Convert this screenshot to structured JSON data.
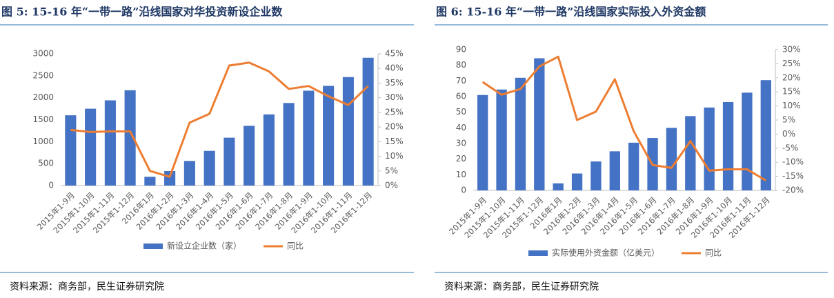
{
  "chart_data": [
    {
      "type": "bar",
      "title": "图 5: 15-16 年“一带一路”沿线国家对华投资新设企业数",
      "source": "资料来源：商务部，民生证券研究院",
      "categories": [
        "2015年1-9月",
        "2015年1-10月",
        "2015年1-11月",
        "2015年1-12月",
        "2016年1月",
        "2016年1-2月",
        "2016年1-3月",
        "2016年1-4月",
        "2016年1-5月",
        "2016年1-6月",
        "2016年1-7月",
        "2016年1-8月",
        "2016年1-9月",
        "2016年1-10月",
        "2016年1-11月",
        "2016年1-12月"
      ],
      "series": [
        {
          "name": "新设立企业数（家）",
          "type": "bar",
          "color": "#4472c4",
          "values": [
            1600,
            1750,
            1940,
            2170,
            200,
            330,
            560,
            790,
            1090,
            1360,
            1620,
            1880,
            2160,
            2270,
            2470,
            2910
          ]
        },
        {
          "name": "同比",
          "type": "line",
          "axis": "y2",
          "color": "#ed7d31",
          "values": [
            19,
            18.3,
            18.5,
            18.5,
            5,
            3,
            21.5,
            24.5,
            41,
            42,
            39,
            33,
            34,
            30.5,
            27.5,
            34
          ]
        }
      ],
      "ylim": [
        0,
        3000
      ],
      "yticks": [
        0,
        500,
        1000,
        1500,
        2000,
        2500,
        3000
      ],
      "y2lim": [
        0,
        45
      ],
      "y2ticks": [
        {
          "value": 0,
          "label": "0%"
        },
        {
          "value": 5,
          "label": "5%"
        },
        {
          "value": 10,
          "label": "10%"
        },
        {
          "value": 15,
          "label": "15%"
        },
        {
          "value": 20,
          "label": "20%"
        },
        {
          "value": 25,
          "label": "25%"
        },
        {
          "value": 30,
          "label": "30%"
        },
        {
          "value": 35,
          "label": "35%"
        },
        {
          "value": 40,
          "label": "40%"
        },
        {
          "value": 45,
          "label": "45%"
        }
      ]
    },
    {
      "type": "bar",
      "title": "图 6: 15-16 年“一带一路”沿线国家实际投入外资金额",
      "source": "资料来源：商务部，民生证券研究院",
      "categories": [
        "2015年1-9月",
        "2015年1-10月",
        "2015年1-11月",
        "2015年1-12月",
        "2016年1月",
        "2016年1-2月",
        "2016年1-3月",
        "2016年1-4月",
        "2016年1-5月",
        "2016年1-6月",
        "2016年1-7月",
        "2016年1-8月",
        "2016年1-9月",
        "2016年1-10月",
        "2016年1-11月",
        "2016年1-12月"
      ],
      "series": [
        {
          "name": "实际使用外资金额（亿美元）",
          "type": "bar",
          "color": "#4472c4",
          "values": [
            61,
            64.5,
            72,
            84.5,
            4.5,
            10.8,
            18.5,
            25,
            30.5,
            33.5,
            40,
            47.5,
            53,
            56.5,
            62.5,
            70.5
          ]
        },
        {
          "name": "同比",
          "type": "line",
          "axis": "y2",
          "color": "#ed7d31",
          "values": [
            18.5,
            14,
            16,
            24,
            27.5,
            5,
            8,
            19.5,
            1,
            -11,
            -12,
            -2.5,
            -13,
            -12.5,
            -12.5,
            -16.5
          ]
        }
      ],
      "ylim": [
        0,
        90
      ],
      "yticks": [
        0,
        10,
        20,
        30,
        40,
        50,
        60,
        70,
        80,
        90
      ],
      "y2lim": [
        -20,
        30
      ],
      "y2ticks": [
        {
          "value": -20,
          "label": "-20%"
        },
        {
          "value": -15,
          "label": "-15%"
        },
        {
          "value": -10,
          "label": "-10%"
        },
        {
          "value": -5,
          "label": "-5%"
        },
        {
          "value": 0,
          "label": "0%"
        },
        {
          "value": 5,
          "label": "5%"
        },
        {
          "value": 10,
          "label": "10%"
        },
        {
          "value": 15,
          "label": "15%"
        },
        {
          "value": 20,
          "label": "20%"
        },
        {
          "value": 25,
          "label": "25%"
        },
        {
          "value": 30,
          "label": "30%"
        }
      ]
    }
  ]
}
